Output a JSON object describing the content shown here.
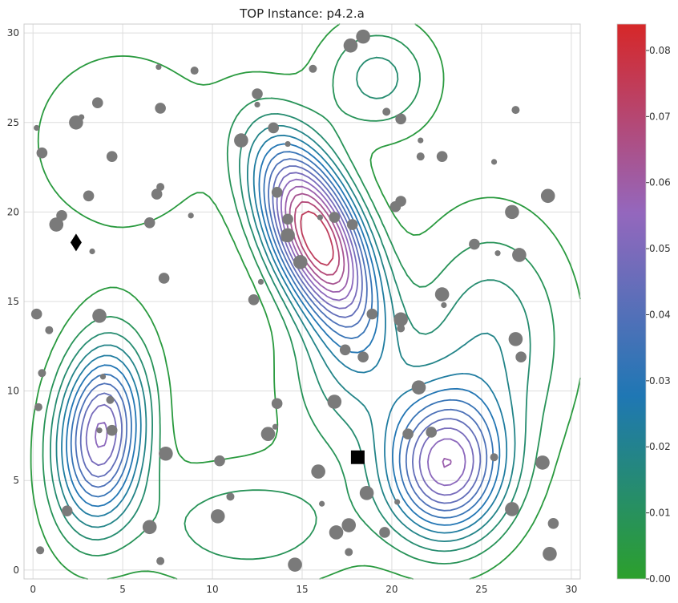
{
  "chart_data": {
    "type": "contour",
    "title": "TOP Instance: p4.2.a",
    "xlabel": "",
    "ylabel": "",
    "xlim": [
      -0.5,
      30.5
    ],
    "ylim": [
      -0.5,
      30.5
    ],
    "x_ticks": [
      0,
      5,
      10,
      15,
      20,
      25,
      30
    ],
    "y_ticks": [
      0,
      5,
      10,
      15,
      20,
      25,
      30
    ],
    "grid": true,
    "colorbar": {
      "min": 0.0,
      "max": 0.084,
      "ticks": [
        0.0,
        0.01,
        0.02,
        0.03,
        0.04,
        0.05,
        0.06,
        0.07,
        0.08
      ],
      "tick_labels": [
        "0.00",
        "0.01",
        "0.02",
        "0.03",
        "0.04",
        "0.05",
        "0.06",
        "0.07",
        "0.08"
      ],
      "colors": [
        "#2ca02c",
        "#1f77b4",
        "#9467bd",
        "#d62728"
      ]
    },
    "density_peaks": [
      {
        "x": 15.8,
        "y": 18.6,
        "amp": 0.08,
        "sx": 2.2,
        "sy": 3.6,
        "rho": -0.55
      },
      {
        "x": 3.8,
        "y": 7.6,
        "amp": 0.055,
        "sx": 1.7,
        "sy": 3.4,
        "rho": 0.15
      },
      {
        "x": 23.0,
        "y": 5.8,
        "amp": 0.055,
        "sx": 2.3,
        "sy": 2.8,
        "rho": 0.0
      },
      {
        "x": 19.2,
        "y": 27.5,
        "amp": 0.016,
        "sx": 2.2,
        "sy": 2.2,
        "rho": 0.0
      },
      {
        "x": 25.5,
        "y": 13.0,
        "amp": 0.018,
        "sx": 3.0,
        "sy": 4.5,
        "rho": 0.0
      },
      {
        "x": 17.5,
        "y": 10.5,
        "amp": 0.014,
        "sx": 2.5,
        "sy": 3.0,
        "rho": 0.0
      },
      {
        "x": 12.0,
        "y": 2.5,
        "amp": 0.012,
        "sx": 4.5,
        "sy": 2.5,
        "rho": 0.0
      },
      {
        "x": 5.0,
        "y": 24.0,
        "amp": 0.008,
        "sx": 4.0,
        "sy": 4.0,
        "rho": 0.0
      }
    ],
    "contour_levels": [
      0.004,
      0.009,
      0.014,
      0.019,
      0.024,
      0.029,
      0.034,
      0.039,
      0.044,
      0.049,
      0.054,
      0.059,
      0.064,
      0.069,
      0.074
    ],
    "nodes": [
      {
        "x": 18.4,
        "y": 29.8,
        "r": "l"
      },
      {
        "x": 17.7,
        "y": 29.3,
        "r": "l"
      },
      {
        "x": 15.6,
        "y": 28.0,
        "r": "s"
      },
      {
        "x": 9.0,
        "y": 27.9,
        "r": "s"
      },
      {
        "x": 7.0,
        "y": 28.1,
        "r": "xs"
      },
      {
        "x": 12.5,
        "y": 26.6,
        "r": "m"
      },
      {
        "x": 12.5,
        "y": 26.0,
        "r": "xs"
      },
      {
        "x": 3.6,
        "y": 26.1,
        "r": "m"
      },
      {
        "x": 2.4,
        "y": 25.0,
        "r": "l"
      },
      {
        "x": 2.7,
        "y": 25.3,
        "r": "xs"
      },
      {
        "x": 0.2,
        "y": 24.7,
        "r": "xs"
      },
      {
        "x": 7.1,
        "y": 25.8,
        "r": "m"
      },
      {
        "x": 0.5,
        "y": 23.3,
        "r": "m"
      },
      {
        "x": 4.4,
        "y": 23.1,
        "r": "m"
      },
      {
        "x": 13.4,
        "y": 24.7,
        "r": "m"
      },
      {
        "x": 11.6,
        "y": 24.0,
        "r": "l"
      },
      {
        "x": 14.2,
        "y": 23.8,
        "r": "xs"
      },
      {
        "x": 19.7,
        "y": 25.6,
        "r": "s"
      },
      {
        "x": 20.5,
        "y": 25.2,
        "r": "m"
      },
      {
        "x": 21.6,
        "y": 24.0,
        "r": "xs"
      },
      {
        "x": 21.6,
        "y": 23.1,
        "r": "s"
      },
      {
        "x": 22.8,
        "y": 23.1,
        "r": "m"
      },
      {
        "x": 25.7,
        "y": 22.8,
        "r": "xs"
      },
      {
        "x": 26.9,
        "y": 25.7,
        "r": "s"
      },
      {
        "x": 3.1,
        "y": 20.9,
        "r": "m"
      },
      {
        "x": 7.1,
        "y": 21.4,
        "r": "s"
      },
      {
        "x": 6.9,
        "y": 21.0,
        "r": "m"
      },
      {
        "x": 13.6,
        "y": 21.1,
        "r": "m"
      },
      {
        "x": 1.6,
        "y": 19.8,
        "r": "m"
      },
      {
        "x": 1.3,
        "y": 19.3,
        "r": "l"
      },
      {
        "x": 6.5,
        "y": 19.4,
        "r": "m"
      },
      {
        "x": 8.8,
        "y": 19.8,
        "r": "xs"
      },
      {
        "x": 14.2,
        "y": 19.6,
        "r": "m"
      },
      {
        "x": 16.0,
        "y": 19.7,
        "r": "xs"
      },
      {
        "x": 16.8,
        "y": 19.7,
        "r": "m"
      },
      {
        "x": 17.8,
        "y": 19.3,
        "r": "m"
      },
      {
        "x": 20.2,
        "y": 20.3,
        "r": "m"
      },
      {
        "x": 20.5,
        "y": 20.6,
        "r": "m"
      },
      {
        "x": 14.2,
        "y": 18.7,
        "r": "l"
      },
      {
        "x": 14.0,
        "y": 18.5,
        "r": "xs"
      },
      {
        "x": 14.9,
        "y": 17.2,
        "r": "l"
      },
      {
        "x": 24.6,
        "y": 18.2,
        "r": "m"
      },
      {
        "x": 25.9,
        "y": 17.7,
        "r": "xs"
      },
      {
        "x": 27.1,
        "y": 17.6,
        "r": "l"
      },
      {
        "x": 26.7,
        "y": 20.0,
        "r": "l"
      },
      {
        "x": 28.7,
        "y": 20.9,
        "r": "l"
      },
      {
        "x": 7.3,
        "y": 16.3,
        "r": "m"
      },
      {
        "x": 3.3,
        "y": 17.8,
        "r": "xs"
      },
      {
        "x": 12.7,
        "y": 16.1,
        "r": "xs"
      },
      {
        "x": 12.3,
        "y": 15.1,
        "r": "m"
      },
      {
        "x": 22.8,
        "y": 15.4,
        "r": "l"
      },
      {
        "x": 22.9,
        "y": 14.8,
        "r": "xs"
      },
      {
        "x": 0.2,
        "y": 14.3,
        "r": "m"
      },
      {
        "x": 3.7,
        "y": 14.2,
        "r": "l"
      },
      {
        "x": 0.9,
        "y": 13.4,
        "r": "s"
      },
      {
        "x": 18.9,
        "y": 14.3,
        "r": "m"
      },
      {
        "x": 20.5,
        "y": 14.0,
        "r": "l"
      },
      {
        "x": 20.5,
        "y": 13.5,
        "r": "s"
      },
      {
        "x": 26.9,
        "y": 12.9,
        "r": "l"
      },
      {
        "x": 27.2,
        "y": 11.9,
        "r": "m"
      },
      {
        "x": 17.4,
        "y": 12.3,
        "r": "m"
      },
      {
        "x": 18.4,
        "y": 11.9,
        "r": "m"
      },
      {
        "x": 0.5,
        "y": 11.0,
        "r": "s"
      },
      {
        "x": 3.9,
        "y": 10.8,
        "r": "xs"
      },
      {
        "x": 21.5,
        "y": 10.2,
        "r": "l"
      },
      {
        "x": 4.3,
        "y": 9.5,
        "r": "s"
      },
      {
        "x": 0.3,
        "y": 9.1,
        "r": "s"
      },
      {
        "x": 13.6,
        "y": 9.3,
        "r": "m"
      },
      {
        "x": 16.8,
        "y": 9.4,
        "r": "l"
      },
      {
        "x": 13.5,
        "y": 8.0,
        "r": "xs"
      },
      {
        "x": 3.7,
        "y": 7.8,
        "r": "xs"
      },
      {
        "x": 4.4,
        "y": 7.8,
        "r": "m"
      },
      {
        "x": 13.1,
        "y": 7.6,
        "r": "l"
      },
      {
        "x": 20.9,
        "y": 7.6,
        "r": "m"
      },
      {
        "x": 22.2,
        "y": 7.7,
        "r": "m"
      },
      {
        "x": 7.4,
        "y": 6.5,
        "r": "l"
      },
      {
        "x": 10.4,
        "y": 6.1,
        "r": "m"
      },
      {
        "x": 25.7,
        "y": 6.3,
        "r": "s"
      },
      {
        "x": 28.4,
        "y": 6.0,
        "r": "l"
      },
      {
        "x": 15.9,
        "y": 5.5,
        "r": "l"
      },
      {
        "x": 18.6,
        "y": 4.3,
        "r": "l"
      },
      {
        "x": 11.0,
        "y": 4.1,
        "r": "s"
      },
      {
        "x": 16.1,
        "y": 3.7,
        "r": "xs"
      },
      {
        "x": 20.3,
        "y": 3.8,
        "r": "xs"
      },
      {
        "x": 26.7,
        "y": 3.4,
        "r": "l"
      },
      {
        "x": 1.9,
        "y": 3.3,
        "r": "m"
      },
      {
        "x": 10.3,
        "y": 3.0,
        "r": "l"
      },
      {
        "x": 6.5,
        "y": 2.4,
        "r": "l"
      },
      {
        "x": 17.6,
        "y": 2.5,
        "r": "l"
      },
      {
        "x": 16.9,
        "y": 2.1,
        "r": "l"
      },
      {
        "x": 19.6,
        "y": 2.1,
        "r": "m"
      },
      {
        "x": 29.0,
        "y": 2.6,
        "r": "m"
      },
      {
        "x": 0.4,
        "y": 1.1,
        "r": "s"
      },
      {
        "x": 17.6,
        "y": 1.0,
        "r": "s"
      },
      {
        "x": 7.1,
        "y": 0.5,
        "r": "s"
      },
      {
        "x": 14.6,
        "y": 0.3,
        "r": "l"
      },
      {
        "x": 28.8,
        "y": 0.9,
        "r": "l"
      }
    ],
    "start": {
      "x": 2.4,
      "y": 18.3,
      "marker": "diamond"
    },
    "end": {
      "x": 18.1,
      "y": 6.3,
      "marker": "square"
    }
  }
}
